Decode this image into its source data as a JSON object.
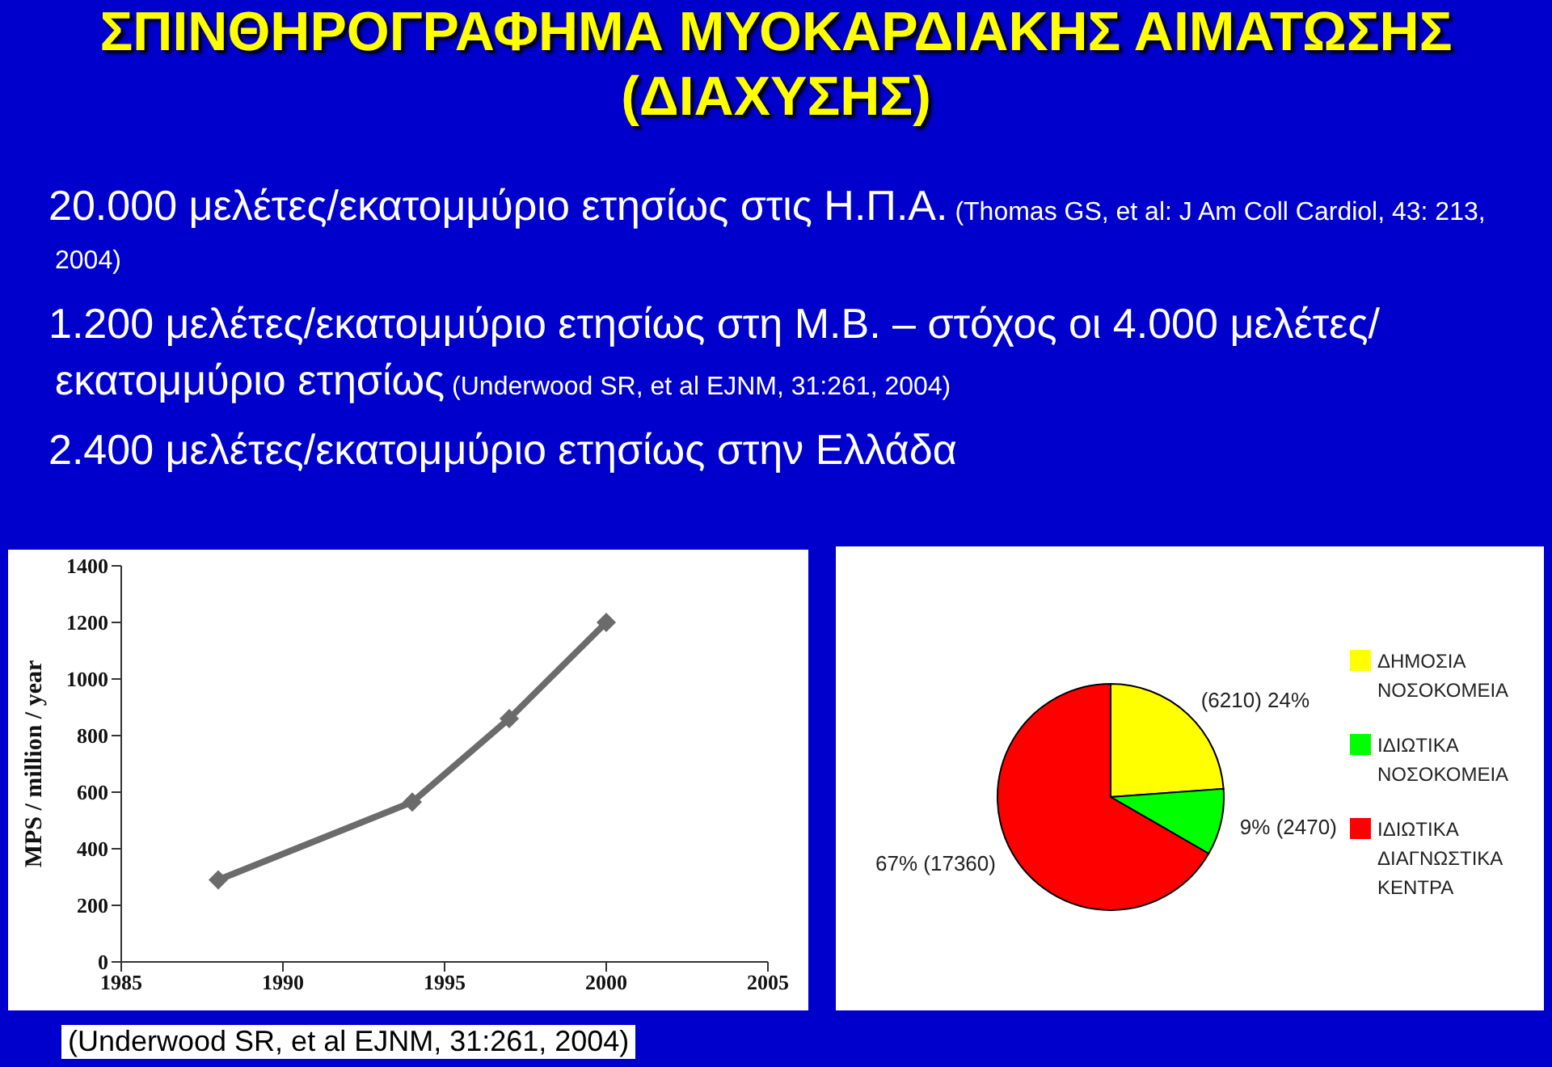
{
  "chart_data": [
    {
      "type": "other",
      "title": "ΣΠΙΝΘΗΡΟΓΡΑΦΗΜΑ ΜΥΟΚΑΡΔΙΑΚΗΣ ΑΙΜΑΤΩΣΗΣ (ΔΙΑΧΥΣΗΣ)",
      "annotations": [
        "20.000 μελέτες/εκατομμύριο ετησίως στις Η.Π.Α.",
        "(Thomas GS, et al: J Am Coll Cardiol, 43: 213, 2004)",
        "1.200 μελέτες/εκατομμύριο ετησίως στη Μ.Β. – στόχος οι 4.000 μελέτες/εκατομμύριο ετησίως",
        "(Underwood SR, et al EJNM, 31:261, 2004)",
        "2.400 μελέτες/εκατομμύριο ετησίως στην Ελλάδα",
        "(Underwood SR, et al EJNM, 31:261, 2004)"
      ]
    },
    {
      "type": "line",
      "ylabel": "MPS / million / year",
      "x": [
        1988,
        1994,
        1997,
        2000
      ],
      "series": [
        {
          "color": "#6b6b6b",
          "values": [
            290,
            565,
            860,
            1200
          ]
        }
      ],
      "xlim": [
        1985,
        2005
      ],
      "xticks": [
        1985,
        1990,
        1995,
        2000,
        2005
      ],
      "ylim": [
        0,
        1400
      ],
      "yticks": [
        0,
        200,
        400,
        600,
        800,
        1000,
        1200,
        1400
      ],
      "marker": "diamond"
    },
    {
      "type": "pie",
      "categories": [
        "ΔΗΜΟΣΙΑ ΝΟΣΟΚΟΜΕΙΑ",
        "ΙΔΙΩΤΙΚΑ ΝΟΣΟΚΟΜΕΙΑ",
        "ΙΔΙΩΤΙΚΑ ΔΙΑΓΝΩΣΤΙΚΑ ΚΕΝΤΡΑ"
      ],
      "values": [
        6210,
        2470,
        17360
      ],
      "colors": [
        "#ffff00",
        "#00ff00",
        "#ff0000"
      ],
      "value_labels": [
        "(6210) 24%",
        "9% (2470)",
        "67% (17360)"
      ],
      "legend": "right"
    }
  ]
}
